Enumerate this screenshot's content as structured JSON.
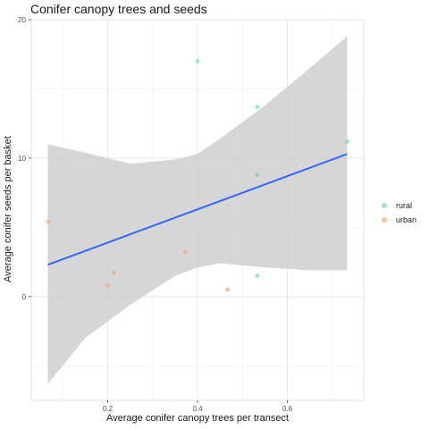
{
  "chart_data": {
    "type": "scatter",
    "title": "Conifer canopy trees and seeds",
    "xlabel": "Average conifer canopy trees per transect",
    "ylabel": "Average conifer seeds per basket",
    "xlim": [
      0.03,
      0.77
    ],
    "ylim": [
      -7.5,
      20
    ],
    "x_ticks": [
      0.2,
      0.4,
      0.6
    ],
    "y_ticks": [
      0,
      10,
      20
    ],
    "x_tick_labels": [
      "0.2",
      "0.4",
      "0.6"
    ],
    "y_tick_labels": [
      "0",
      "10",
      "20"
    ],
    "grid": true,
    "legend_position": "right",
    "series": [
      {
        "name": "rural",
        "color": "#66d9b8",
        "points": [
          {
            "x": 0.4,
            "y": 17.0
          },
          {
            "x": 0.533,
            "y": 13.7
          },
          {
            "x": 0.733,
            "y": 11.2
          },
          {
            "x": 0.533,
            "y": 8.8
          },
          {
            "x": 0.533,
            "y": 1.5
          }
        ]
      },
      {
        "name": "urban",
        "color": "#fca36b",
        "points": [
          {
            "x": 0.067,
            "y": 5.4
          },
          {
            "x": 0.213,
            "y": 1.7
          },
          {
            "x": 0.2,
            "y": 0.8
          },
          {
            "x": 0.373,
            "y": 3.2
          },
          {
            "x": 0.467,
            "y": 0.5
          }
        ]
      }
    ],
    "trend_line": {
      "color": "#3366ff",
      "x": [
        0.067,
        0.733
      ],
      "y": [
        2.3,
        10.3
      ],
      "confidence_band": {
        "x": [
          0.067,
          0.15,
          0.25,
          0.35,
          0.4,
          0.45,
          0.55,
          0.65,
          0.733
        ],
        "upper": [
          11.0,
          10.4,
          9.6,
          9.9,
          10.3,
          11.4,
          13.8,
          16.5,
          18.8
        ],
        "lower": [
          -6.3,
          -3.0,
          -0.6,
          1.5,
          2.1,
          2.4,
          2.1,
          1.9,
          1.9
        ]
      }
    }
  }
}
